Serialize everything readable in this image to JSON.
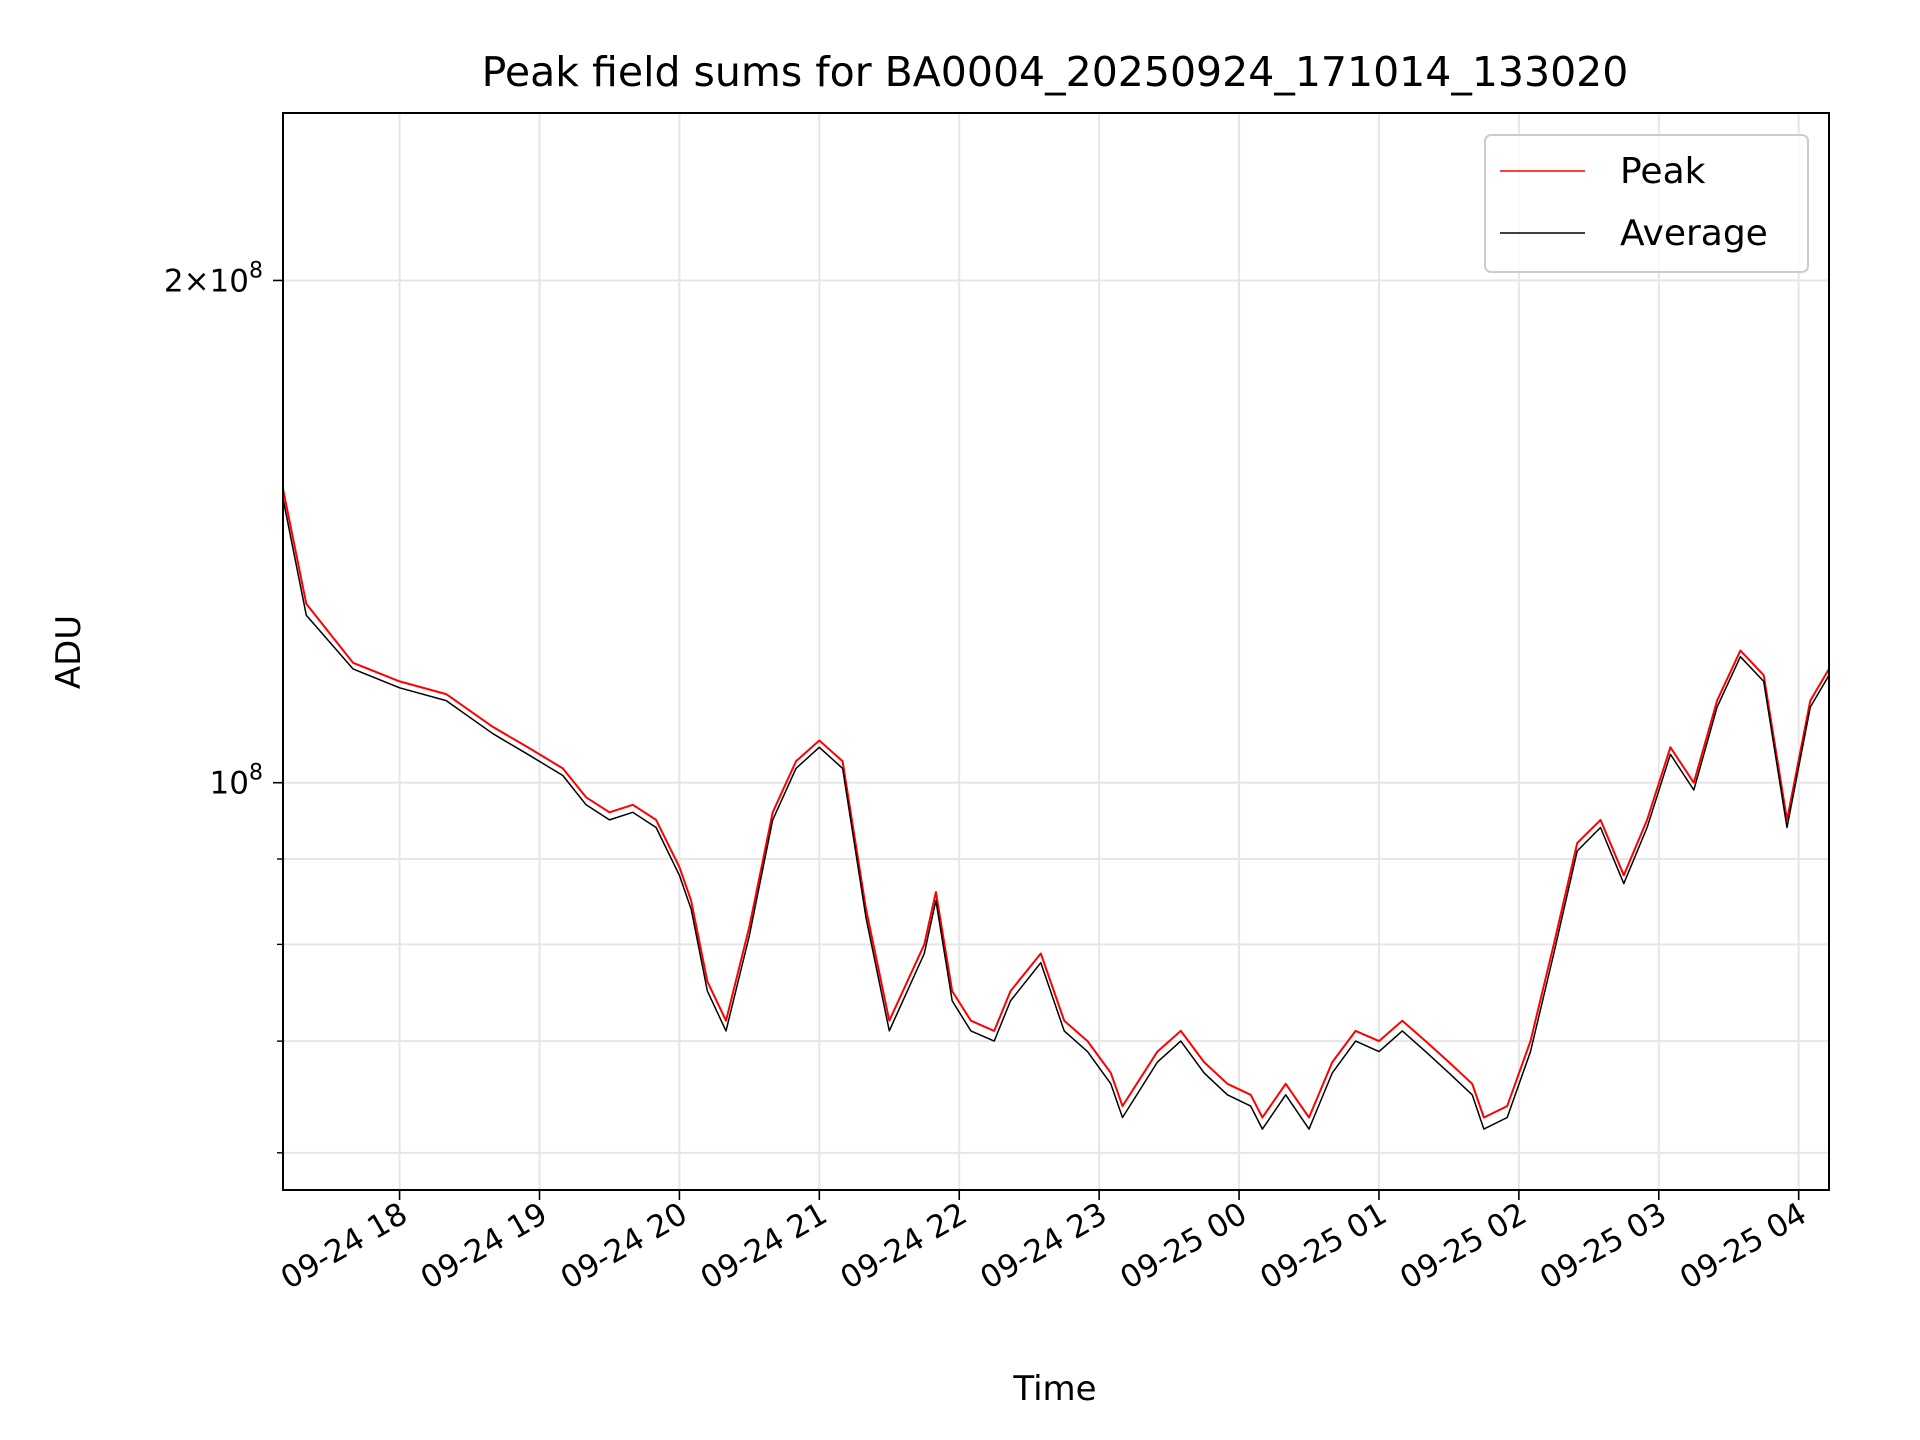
{
  "chart_data": {
    "type": "line",
    "title": "Peak field sums for BA0004_20250924_171014_133020",
    "xlabel": "Time",
    "ylabel": "ADU",
    "yscale": "log",
    "x_range": [
      "2025-09-24 17:10",
      "2025-09-25 04:13"
    ],
    "ylim": [
      57000000,
      252000000
    ],
    "grid": true,
    "legend_position": "top-right",
    "x_ticks": [
      {
        "t": "2025-09-24 18:00",
        "label": "09-24 18"
      },
      {
        "t": "2025-09-24 19:00",
        "label": "09-24 19"
      },
      {
        "t": "2025-09-24 20:00",
        "label": "09-24 20"
      },
      {
        "t": "2025-09-24 21:00",
        "label": "09-24 21"
      },
      {
        "t": "2025-09-24 22:00",
        "label": "09-24 22"
      },
      {
        "t": "2025-09-24 23:00",
        "label": "09-24 23"
      },
      {
        "t": "2025-09-25 00:00",
        "label": "09-25 00"
      },
      {
        "t": "2025-09-25 01:00",
        "label": "09-25 01"
      },
      {
        "t": "2025-09-25 02:00",
        "label": "09-25 02"
      },
      {
        "t": "2025-09-25 03:00",
        "label": "09-25 03"
      },
      {
        "t": "2025-09-25 04:00",
        "label": "09-25 04"
      }
    ],
    "y_ticks_major": [
      {
        "value": 100000000,
        "base": "10",
        "exp": "8",
        "coef": ""
      },
      {
        "value": 200000000,
        "base": "10",
        "exp": "8",
        "coef": "2"
      }
    ],
    "y_ticks_minor": [
      60000000,
      70000000,
      80000000,
      90000000
    ],
    "series": [
      {
        "name": "Peak",
        "color": "#ff0000",
        "points": [
          [
            "2025-09-24 17:10",
            150000000
          ],
          [
            "2025-09-24 17:20",
            128000000
          ],
          [
            "2025-09-24 17:40",
            118000000
          ],
          [
            "2025-09-24 18:00",
            115000000
          ],
          [
            "2025-09-24 18:20",
            113000000
          ],
          [
            "2025-09-24 18:40",
            108000000
          ],
          [
            "2025-09-24 18:55",
            105000000
          ],
          [
            "2025-09-24 19:10",
            102000000
          ],
          [
            "2025-09-24 19:20",
            98000000
          ],
          [
            "2025-09-24 19:30",
            96000000
          ],
          [
            "2025-09-24 19:40",
            97000000
          ],
          [
            "2025-09-24 19:50",
            95000000
          ],
          [
            "2025-09-24 20:00",
            89000000
          ],
          [
            "2025-09-24 20:05",
            85000000
          ],
          [
            "2025-09-24 20:12",
            76000000
          ],
          [
            "2025-09-24 20:20",
            72000000
          ],
          [
            "2025-09-24 20:30",
            82000000
          ],
          [
            "2025-09-24 20:40",
            96000000
          ],
          [
            "2025-09-24 20:50",
            103000000
          ],
          [
            "2025-09-24 21:00",
            106000000
          ],
          [
            "2025-09-24 21:10",
            103000000
          ],
          [
            "2025-09-24 21:20",
            84000000
          ],
          [
            "2025-09-24 21:30",
            72000000
          ],
          [
            "2025-09-24 21:45",
            80000000
          ],
          [
            "2025-09-24 21:50",
            86000000
          ],
          [
            "2025-09-24 21:57",
            75000000
          ],
          [
            "2025-09-24 22:05",
            72000000
          ],
          [
            "2025-09-24 22:15",
            71000000
          ],
          [
            "2025-09-24 22:22",
            75000000
          ],
          [
            "2025-09-24 22:35",
            79000000
          ],
          [
            "2025-09-24 22:45",
            72000000
          ],
          [
            "2025-09-24 22:55",
            70000000
          ],
          [
            "2025-09-24 23:05",
            67000000
          ],
          [
            "2025-09-24 23:10",
            64000000
          ],
          [
            "2025-09-24 23:25",
            69000000
          ],
          [
            "2025-09-24 23:35",
            71000000
          ],
          [
            "2025-09-24 23:45",
            68000000
          ],
          [
            "2025-09-24 23:55",
            66000000
          ],
          [
            "2025-09-25 00:05",
            65000000
          ],
          [
            "2025-09-25 00:10",
            63000000
          ],
          [
            "2025-09-25 00:20",
            66000000
          ],
          [
            "2025-09-25 00:30",
            63000000
          ],
          [
            "2025-09-25 00:40",
            68000000
          ],
          [
            "2025-09-25 00:50",
            71000000
          ],
          [
            "2025-09-25 01:00",
            70000000
          ],
          [
            "2025-09-25 01:10",
            72000000
          ],
          [
            "2025-09-25 01:20",
            70000000
          ],
          [
            "2025-09-25 01:30",
            68000000
          ],
          [
            "2025-09-25 01:40",
            66000000
          ],
          [
            "2025-09-25 01:45",
            63000000
          ],
          [
            "2025-09-25 01:55",
            64000000
          ],
          [
            "2025-09-25 02:05",
            70000000
          ],
          [
            "2025-09-25 02:15",
            80000000
          ],
          [
            "2025-09-25 02:25",
            92000000
          ],
          [
            "2025-09-25 02:35",
            95000000
          ],
          [
            "2025-09-25 02:45",
            88000000
          ],
          [
            "2025-09-25 02:55",
            95000000
          ],
          [
            "2025-09-25 03:05",
            105000000
          ],
          [
            "2025-09-25 03:15",
            100000000
          ],
          [
            "2025-09-25 03:25",
            112000000
          ],
          [
            "2025-09-25 03:35",
            120000000
          ],
          [
            "2025-09-25 03:45",
            116000000
          ],
          [
            "2025-09-25 03:55",
            95000000
          ],
          [
            "2025-09-25 04:05",
            112000000
          ],
          [
            "2025-09-25 04:13",
            117000000
          ]
        ]
      },
      {
        "name": "Average",
        "color": "#000000",
        "points": [
          [
            "2025-09-24 17:10",
            148000000
          ],
          [
            "2025-09-24 17:20",
            126000000
          ],
          [
            "2025-09-24 17:40",
            117000000
          ],
          [
            "2025-09-24 18:00",
            114000000
          ],
          [
            "2025-09-24 18:20",
            112000000
          ],
          [
            "2025-09-24 18:40",
            107000000
          ],
          [
            "2025-09-24 18:55",
            104000000
          ],
          [
            "2025-09-24 19:10",
            101000000
          ],
          [
            "2025-09-24 19:20",
            97000000
          ],
          [
            "2025-09-24 19:30",
            95000000
          ],
          [
            "2025-09-24 19:40",
            96000000
          ],
          [
            "2025-09-24 19:50",
            94000000
          ],
          [
            "2025-09-24 20:00",
            88000000
          ],
          [
            "2025-09-24 20:05",
            84000000
          ],
          [
            "2025-09-24 20:12",
            75000000
          ],
          [
            "2025-09-24 20:20",
            71000000
          ],
          [
            "2025-09-24 20:30",
            81000000
          ],
          [
            "2025-09-24 20:40",
            95000000
          ],
          [
            "2025-09-24 20:50",
            102000000
          ],
          [
            "2025-09-24 21:00",
            105000000
          ],
          [
            "2025-09-24 21:10",
            102000000
          ],
          [
            "2025-09-24 21:20",
            83000000
          ],
          [
            "2025-09-24 21:30",
            71000000
          ],
          [
            "2025-09-24 21:45",
            79000000
          ],
          [
            "2025-09-24 21:50",
            85000000
          ],
          [
            "2025-09-24 21:57",
            74000000
          ],
          [
            "2025-09-24 22:05",
            71000000
          ],
          [
            "2025-09-24 22:15",
            70000000
          ],
          [
            "2025-09-24 22:22",
            74000000
          ],
          [
            "2025-09-24 22:35",
            78000000
          ],
          [
            "2025-09-24 22:45",
            71000000
          ],
          [
            "2025-09-24 22:55",
            69000000
          ],
          [
            "2025-09-24 23:05",
            66000000
          ],
          [
            "2025-09-24 23:10",
            63000000
          ],
          [
            "2025-09-24 23:25",
            68000000
          ],
          [
            "2025-09-24 23:35",
            70000000
          ],
          [
            "2025-09-24 23:45",
            67000000
          ],
          [
            "2025-09-24 23:55",
            65000000
          ],
          [
            "2025-09-25 00:05",
            64000000
          ],
          [
            "2025-09-25 00:10",
            62000000
          ],
          [
            "2025-09-25 00:20",
            65000000
          ],
          [
            "2025-09-25 00:30",
            62000000
          ],
          [
            "2025-09-25 00:40",
            67000000
          ],
          [
            "2025-09-25 00:50",
            70000000
          ],
          [
            "2025-09-25 01:00",
            69000000
          ],
          [
            "2025-09-25 01:10",
            71000000
          ],
          [
            "2025-09-25 01:20",
            69000000
          ],
          [
            "2025-09-25 01:30",
            67000000
          ],
          [
            "2025-09-25 01:40",
            65000000
          ],
          [
            "2025-09-25 01:45",
            62000000
          ],
          [
            "2025-09-25 01:55",
            63000000
          ],
          [
            "2025-09-25 02:05",
            69000000
          ],
          [
            "2025-09-25 02:15",
            79000000
          ],
          [
            "2025-09-25 02:25",
            91000000
          ],
          [
            "2025-09-25 02:35",
            94000000
          ],
          [
            "2025-09-25 02:45",
            87000000
          ],
          [
            "2025-09-25 02:55",
            94000000
          ],
          [
            "2025-09-25 03:05",
            104000000
          ],
          [
            "2025-09-25 03:15",
            99000000
          ],
          [
            "2025-09-25 03:25",
            111000000
          ],
          [
            "2025-09-25 03:35",
            119000000
          ],
          [
            "2025-09-25 03:45",
            115000000
          ],
          [
            "2025-09-25 03:55",
            94000000
          ],
          [
            "2025-09-25 04:05",
            111000000
          ],
          [
            "2025-09-25 04:13",
            116000000
          ]
        ]
      }
    ]
  }
}
